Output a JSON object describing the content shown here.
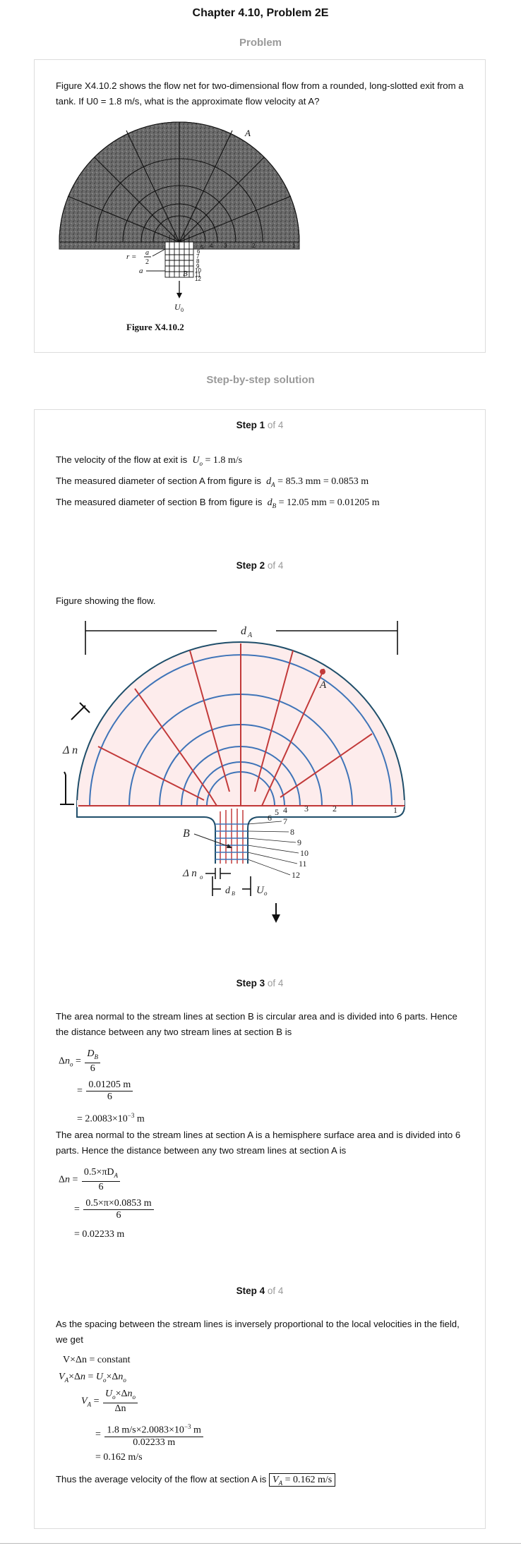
{
  "header": {
    "title": "Chapter 4.10, Problem 2E"
  },
  "problem": {
    "heading": "Problem",
    "text": "Figure X4.10.2 shows the flow net for two-dimensional flow from a rounded, long-slotted exit from a tank. If U0 = 1.8 m/s, what is the approximate flow velocity at A?",
    "figure_caption": "Figure X4.10.2",
    "fig_label_A": "A",
    "fig_label_B": "B",
    "fig_label_r": "r =",
    "fig_label_a_over": "a",
    "fig_label_2": "2",
    "fig_label_a": "a",
    "fig_label_U0": "U",
    "fig_label_U0_sub": "0",
    "fig_nums": [
      "1",
      "2",
      "3",
      "4",
      "5",
      "6",
      "7",
      "8",
      "9",
      "10",
      "11",
      "12"
    ]
  },
  "solution": {
    "heading": "Step-by-step solution",
    "step1": {
      "label": "Step 1",
      "of": "of 4",
      "line1": "The velocity of the flow at exit is",
      "line2": "The measured diameter of section A from figure is",
      "line3": "The measured diameter of section B from figure is",
      "eq1": "U",
      "eq1_sub": "o",
      "eq1_val": "= 1.8 m/s",
      "eq2": "d",
      "eq2_sub": "A",
      "eq2_val": "= 85.3 mm = 0.0853 m",
      "eq3": "d",
      "eq3_sub": "B",
      "eq3_val": "= 12.05 mm = 0.01205 m"
    },
    "step2": {
      "label": "Step 2",
      "of": "of 4",
      "text": "Figure showing the flow.",
      "fig_dA": "d",
      "fig_dA_sub": "A",
      "fig_A": "A",
      "fig_dn": "Δ n",
      "fig_B": "B",
      "fig_dno": "Δ n",
      "fig_dno_sub": "o",
      "fig_dB": "d",
      "fig_dB_sub": "B",
      "fig_Uo": "U",
      "fig_Uo_sub": "o",
      "fig_nums": [
        "1",
        "2",
        "3",
        "4",
        "5",
        "6",
        "7",
        "8",
        "9",
        "10",
        "11",
        "12"
      ]
    },
    "step3": {
      "label": "Step 3",
      "of": "of 4",
      "para1": "The area normal to the stream lines at section B is circular area and is divided into 6 parts. Hence the distance between any two stream lines at section B is",
      "eqB1_num": "D",
      "eqB1_num_sub": "B",
      "eqB1_den": "6",
      "eqB2_num": "0.01205 m",
      "eqB2_den": "6",
      "eqB3": "= 2.0083×10",
      "eqB3_sup": "−3",
      "eqB3_unit": " m",
      "para2": "The area normal to the stream lines at section A is a hemisphere surface area and is divided into 6 parts. Hence the distance between any two stream lines at section A is",
      "eqA1_num": "0.5×πD",
      "eqA1_num_sub": "A",
      "eqA1_den": "6",
      "eqA2_num": "0.5×π×0.0853 m",
      "eqA2_den": "6",
      "eqA3": "= 0.02233 m"
    },
    "step4": {
      "label": "Step 4",
      "of": "of 4",
      "para1": "As the spacing between the stream lines is inversely proportional to the local velocities in the field, we get",
      "eq1": "V×Δn = constant",
      "eq3_num": "U",
      "eq3_den": "Δn",
      "eq4_num": "1.8 m/s×2.0083×10",
      "eq4_num_sup": "−3",
      "eq4_num_unit": " m",
      "eq4_den": "0.02233 m",
      "eq5": "= 0.162 m/s",
      "final_text": "Thus the average velocity of the flow at section A is",
      "final_box": "= 0.162 m/s"
    }
  }
}
